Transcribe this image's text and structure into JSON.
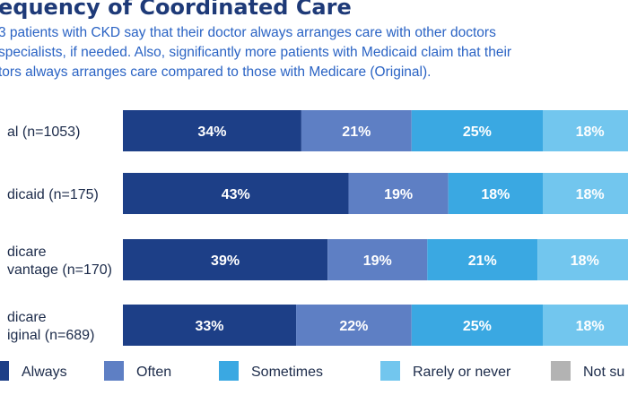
{
  "header": {
    "title": "equency of Coordinated Care",
    "subtitle_lines": [
      "3 patients with CKD say that their doctor always arranges care with other doctors",
      "specialists, if needed. Also, significantly more patients with Medicaid claim that their",
      "tors always arranges care compared to those with Medicare (Original)."
    ]
  },
  "chart_data": {
    "type": "bar",
    "orientation": "horizontal",
    "stacked": true,
    "unit": "%",
    "categories": [
      [
        "al (n=1053)"
      ],
      [
        "dicaid (n=175)"
      ],
      [
        "dicare",
        "vantage (n=170)"
      ],
      [
        "dicare",
        "iginal (n=689)"
      ]
    ],
    "series": [
      {
        "name": "Always",
        "color": "#1d3f87",
        "values": [
          34,
          43,
          39,
          33
        ]
      },
      {
        "name": "Often",
        "color": "#5e7fc4",
        "values": [
          21,
          19,
          19,
          22
        ]
      },
      {
        "name": "Sometimes",
        "color": "#3aa8e2",
        "values": [
          25,
          18,
          21,
          25
        ]
      },
      {
        "name": "Rarely or never",
        "color": "#72c6ee",
        "values": [
          18,
          18,
          18,
          18
        ]
      },
      {
        "name": "Not su",
        "color": "#b3b3b3",
        "values": [
          null,
          null,
          null,
          null
        ]
      }
    ],
    "xlim": [
      0,
      100
    ],
    "grid": false,
    "legend_position": "bottom"
  }
}
